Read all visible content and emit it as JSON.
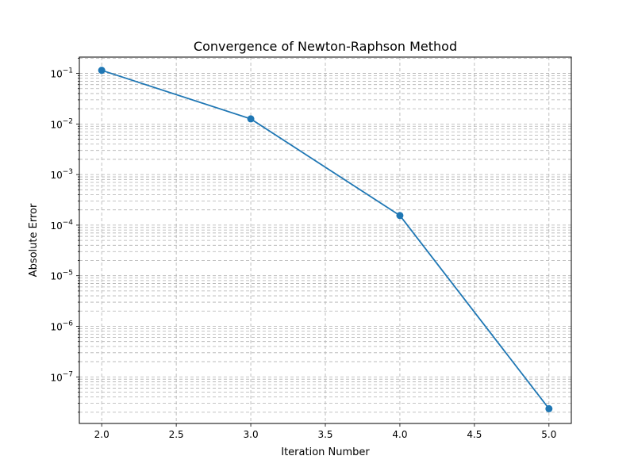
{
  "chart_data": {
    "type": "line",
    "title": "Convergence of Newton-Raphson Method",
    "xlabel": "Iteration Number",
    "ylabel": "Absolute Error",
    "yscale": "log",
    "xlim": [
      1.85,
      5.15
    ],
    "ylim": [
      1.2e-08,
      0.21
    ],
    "grid": true,
    "grid_style": "dashed, major and minor",
    "marker": "circle",
    "color": "#1f77b4",
    "x_ticks": [
      {
        "value": 2.0,
        "label": "2.0"
      },
      {
        "value": 2.5,
        "label": "2.5"
      },
      {
        "value": 3.0,
        "label": "3.0"
      },
      {
        "value": 3.5,
        "label": "3.5"
      },
      {
        "value": 4.0,
        "label": "4.0"
      },
      {
        "value": 4.5,
        "label": "4.5"
      },
      {
        "value": 5.0,
        "label": "5.0"
      }
    ],
    "y_ticks": [
      {
        "exp": -7,
        "base": "10",
        "sup": "−7"
      },
      {
        "exp": -6,
        "base": "10",
        "sup": "−6"
      },
      {
        "exp": -5,
        "base": "10",
        "sup": "−5"
      },
      {
        "exp": -4,
        "base": "10",
        "sup": "−4"
      },
      {
        "exp": -3,
        "base": "10",
        "sup": "−3"
      },
      {
        "exp": -2,
        "base": "10",
        "sup": "−2"
      },
      {
        "exp": -1,
        "base": "10",
        "sup": "−1"
      }
    ],
    "series": [
      {
        "x": [
          2,
          3,
          4,
          5
        ],
        "y": [
          0.115,
          0.0126,
          0.000155,
          2.35e-08
        ]
      }
    ]
  }
}
